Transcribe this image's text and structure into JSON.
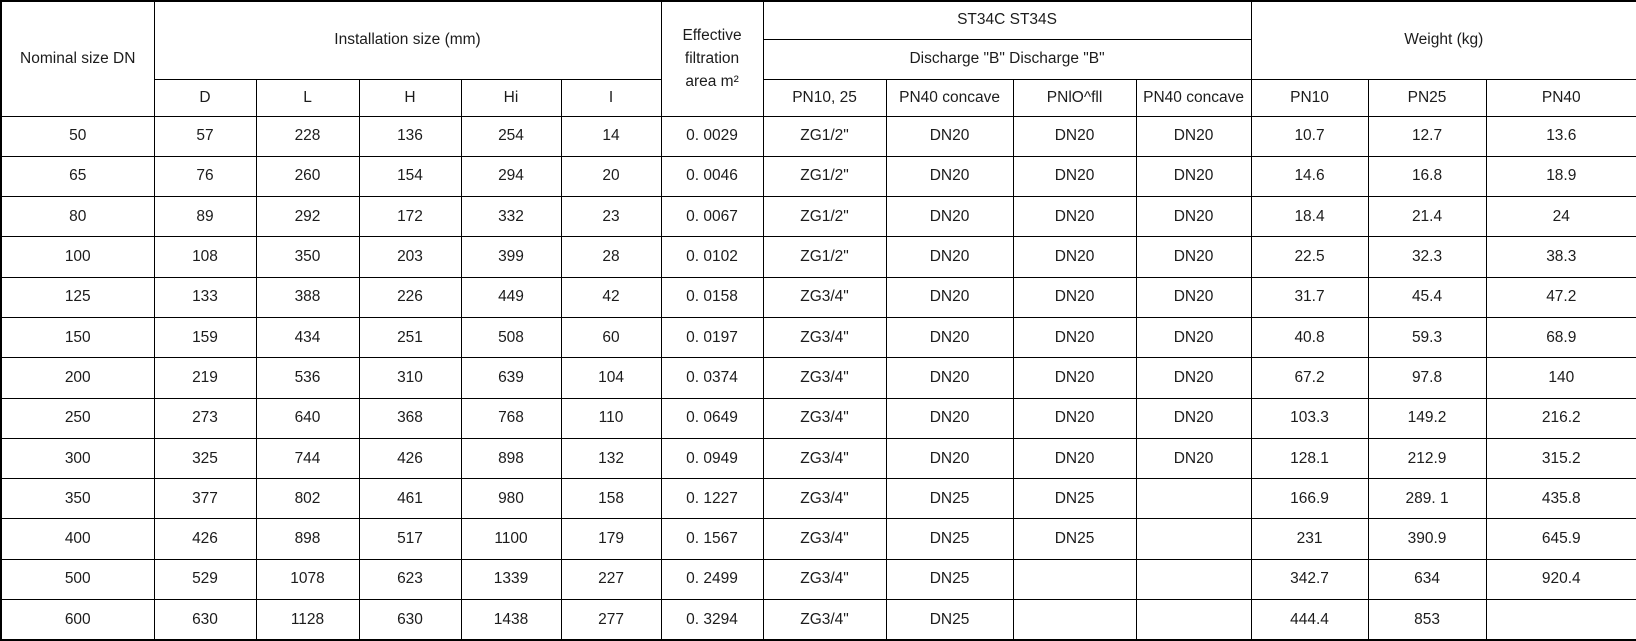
{
  "table": {
    "header": {
      "nominal": "Nominal size DN",
      "installation_group": "Installation size (mm)",
      "installation_cols": [
        "D",
        "L",
        "H",
        "Hi",
        "I"
      ],
      "effective_lines": [
        "Effective",
        "filtration",
        "area m²"
      ],
      "st34_group": "ST34C ST34S",
      "discharge_group": "Discharge \"B\" Discharge \"B\"",
      "discharge_cols": [
        "PN10, 25",
        "PN40 concave",
        "PNlO^fll",
        "PN40 concave"
      ],
      "weight_group": "Weight (kg)",
      "weight_cols": [
        "PN10",
        "PN25",
        "PN40"
      ]
    },
    "rows": [
      [
        "50",
        "57",
        "228",
        "136",
        "254",
        "14",
        "0. 0029",
        "ZG1/2\"",
        "DN20",
        "DN20",
        "DN20",
        "10.7",
        "12.7",
        "13.6"
      ],
      [
        "65",
        "76",
        "260",
        "154",
        "294",
        "20",
        "0. 0046",
        "ZG1/2\"",
        "DN20",
        "DN20",
        "DN20",
        "14.6",
        "16.8",
        "18.9"
      ],
      [
        "80",
        "89",
        "292",
        "172",
        "332",
        "23",
        "0. 0067",
        "ZG1/2\"",
        "DN20",
        "DN20",
        "DN20",
        "18.4",
        "21.4",
        "24"
      ],
      [
        "100",
        "108",
        "350",
        "203",
        "399",
        "28",
        "0. 0102",
        "ZG1/2\"",
        "DN20",
        "DN20",
        "DN20",
        "22.5",
        "32.3",
        "38.3"
      ],
      [
        "125",
        "133",
        "388",
        "226",
        "449",
        "42",
        "0. 0158",
        "ZG3/4\"",
        "DN20",
        "DN20",
        "DN20",
        "31.7",
        "45.4",
        "47.2"
      ],
      [
        "150",
        "159",
        "434",
        "251",
        "508",
        "60",
        "0. 0197",
        "ZG3/4\"",
        "DN20",
        "DN20",
        "DN20",
        "40.8",
        "59.3",
        "68.9"
      ],
      [
        "200",
        "219",
        "536",
        "310",
        "639",
        "104",
        "0. 0374",
        "ZG3/4\"",
        "DN20",
        "DN20",
        "DN20",
        "67.2",
        "97.8",
        "140"
      ],
      [
        "250",
        "273",
        "640",
        "368",
        "768",
        "110",
        "0. 0649",
        "ZG3/4\"",
        "DN20",
        "DN20",
        "DN20",
        "103.3",
        "149.2",
        "216.2"
      ],
      [
        "300",
        "325",
        "744",
        "426",
        "898",
        "132",
        "0. 0949",
        "ZG3/4\"",
        "DN20",
        "DN20",
        "DN20",
        "128.1",
        "212.9",
        "315.2"
      ],
      [
        "350",
        "377",
        "802",
        "461",
        "980",
        "158",
        "0. 1227",
        "ZG3/4\"",
        "DN25",
        "DN25",
        "",
        "166.9",
        "289. 1",
        "435.8"
      ],
      [
        "400",
        "426",
        "898",
        "517",
        "1100",
        "179",
        "0. 1567",
        "ZG3/4\"",
        "DN25",
        "DN25",
        "",
        "231",
        "390.9",
        "645.9"
      ],
      [
        "500",
        "529",
        "1078",
        "623",
        "1339",
        "227",
        "0. 2499",
        "ZG3/4\"",
        "DN25",
        "",
        "",
        "342.7",
        "634",
        "920.4"
      ],
      [
        "600",
        "630",
        "1128",
        "630",
        "1438",
        "277",
        "0. 3294",
        "ZG3/4\"",
        "DN25",
        "",
        "",
        "444.4",
        "853",
        ""
      ]
    ]
  }
}
